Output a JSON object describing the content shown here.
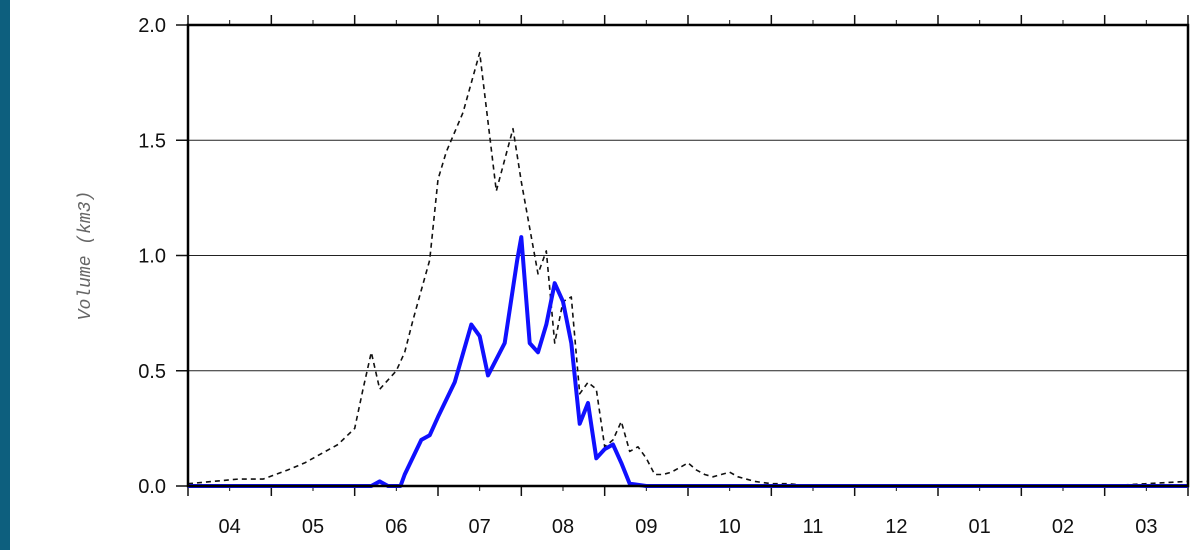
{
  "colors": {
    "background_frame": "#0d5f7e",
    "plot_background": "#ffffff",
    "series_blue": "#1010ff",
    "series_dashed": "#111111",
    "grid": "#222222"
  },
  "chart_data": {
    "type": "line",
    "title": "",
    "xlabel": "",
    "ylabel": "Volume (km3)",
    "x_tick_labels": [
      "04",
      "05",
      "06",
      "07",
      "08",
      "09",
      "10",
      "11",
      "12",
      "01",
      "02",
      "03"
    ],
    "y_tick_labels": [
      "0.0",
      "0.5",
      "1.0",
      "1.5",
      "2.0"
    ],
    "y_ticks": [
      0,
      0.5,
      1.0,
      1.5,
      2.0
    ],
    "xlim": [
      0,
      12
    ],
    "ylim": [
      0,
      2.0
    ],
    "grid": "horizontal",
    "legend": "none",
    "series": [
      {
        "style": "dashed-black",
        "x": [
          0,
          0.3,
          0.6,
          0.9,
          1.2,
          1.4,
          1.6,
          1.8,
          2.0,
          2.1,
          2.2,
          2.3,
          2.5,
          2.6,
          2.7,
          2.8,
          2.9,
          3.0,
          3.1,
          3.3,
          3.5,
          3.7,
          3.9,
          4.0,
          4.2,
          4.3,
          4.4,
          4.5,
          4.6,
          4.7,
          4.8,
          4.9,
          5.0,
          5.1,
          5.2,
          5.3,
          5.4,
          5.5,
          5.6,
          5.7,
          5.8,
          5.9,
          6.0,
          6.1,
          6.2,
          6.3,
          6.4,
          6.5,
          6.6,
          6.8,
          7.0,
          7.2,
          7.5,
          7.8,
          8.0,
          8.5,
          9.0,
          9.5,
          10.0,
          10.5,
          11.0,
          11.5,
          12.0
        ],
        "values": [
          0.01,
          0.02,
          0.03,
          0.03,
          0.07,
          0.1,
          0.14,
          0.18,
          0.25,
          0.42,
          0.58,
          0.42,
          0.5,
          0.58,
          0.72,
          0.85,
          0.98,
          1.33,
          1.45,
          1.62,
          1.88,
          1.28,
          1.55,
          1.32,
          0.92,
          1.02,
          0.62,
          0.8,
          0.82,
          0.4,
          0.45,
          0.42,
          0.17,
          0.2,
          0.28,
          0.15,
          0.17,
          0.12,
          0.05,
          0.05,
          0.06,
          0.08,
          0.1,
          0.07,
          0.05,
          0.04,
          0.05,
          0.06,
          0.04,
          0.02,
          0.01,
          0.01,
          0.0,
          0.0,
          0.0,
          0.0,
          0.0,
          0.0,
          0.0,
          0.0,
          0.0,
          0.01,
          0.02
        ]
      },
      {
        "style": "solid-blue",
        "x": [
          0,
          1.5,
          2.2,
          2.3,
          2.4,
          2.5,
          2.55,
          2.6,
          2.8,
          2.9,
          3.0,
          3.2,
          3.4,
          3.5,
          3.6,
          3.8,
          3.95,
          4.0,
          4.1,
          4.2,
          4.3,
          4.4,
          4.5,
          4.6,
          4.7,
          4.8,
          4.9,
          5.0,
          5.1,
          5.2,
          5.3,
          5.5,
          12.0
        ],
        "values": [
          0.0,
          0.0,
          0.0,
          0.02,
          0.0,
          0.0,
          0.0,
          0.05,
          0.2,
          0.22,
          0.3,
          0.45,
          0.7,
          0.65,
          0.48,
          0.62,
          0.98,
          1.08,
          0.62,
          0.58,
          0.7,
          0.88,
          0.8,
          0.62,
          0.27,
          0.36,
          0.12,
          0.16,
          0.18,
          0.1,
          0.01,
          0.0,
          0.0
        ]
      }
    ]
  }
}
